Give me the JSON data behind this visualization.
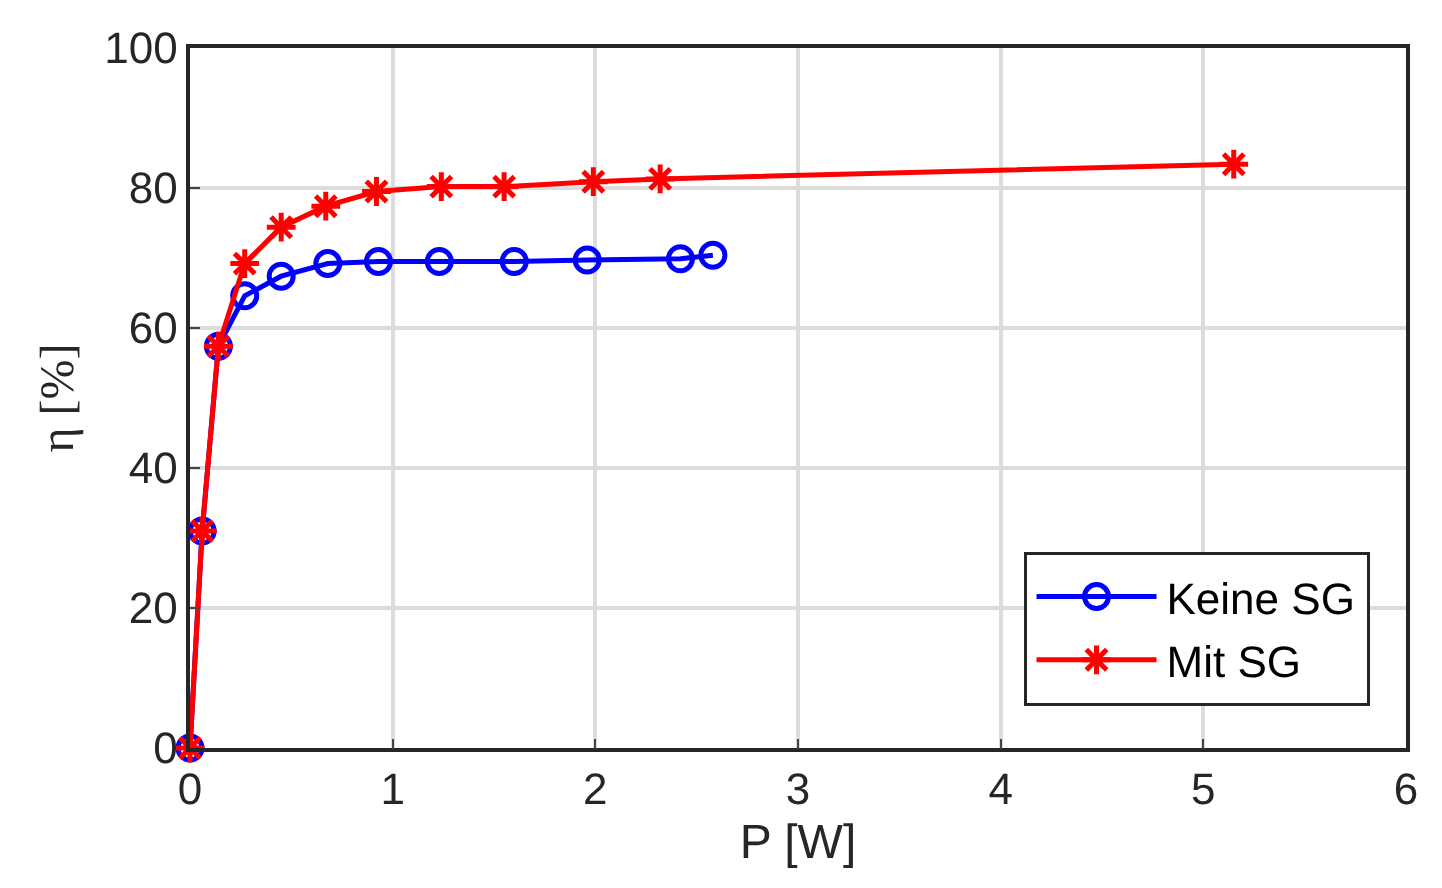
{
  "chart_data": {
    "type": "line",
    "xlabel": "P [W]",
    "ylabel": "η [%]",
    "xlim": [
      0,
      6
    ],
    "xticks": [
      0,
      1,
      2,
      3,
      4,
      5,
      6
    ],
    "ylim": [
      0,
      100
    ],
    "yticks": [
      0,
      20,
      40,
      60,
      80,
      100
    ],
    "grid": true,
    "legend": "bottom right",
    "series": [
      {
        "name": "Keine SG",
        "color": "#0000ff",
        "marker": "circle",
        "x": [
          0,
          0.06,
          0.14,
          0.27,
          0.45,
          0.68,
          0.93,
          1.23,
          1.6,
          1.96,
          2.42,
          2.58
        ],
        "values": [
          0,
          31,
          57.4,
          64.6,
          67.4,
          69.2,
          69.5,
          69.5,
          69.5,
          69.7,
          69.9,
          70.4
        ]
      },
      {
        "name": "Mit SG",
        "color": "#ff0000",
        "marker": "cross",
        "x": [
          0,
          0.06,
          0.14,
          0.27,
          0.45,
          0.67,
          0.92,
          1.24,
          1.55,
          1.99,
          2.32,
          5.15
        ],
        "values": [
          0,
          31,
          57.4,
          69.2,
          74.4,
          77.4,
          79.5,
          80.2,
          80.2,
          80.9,
          81.3,
          83.4
        ]
      }
    ]
  }
}
